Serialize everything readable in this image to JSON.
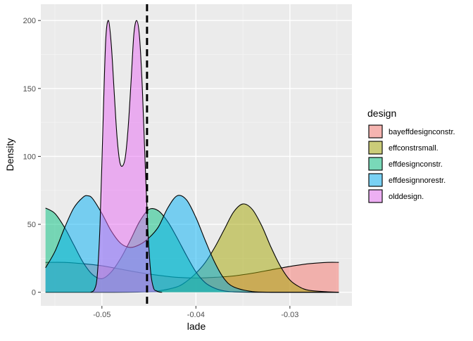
{
  "chart_data": {
    "type": "area",
    "subtype": "density",
    "xlabel": "lade",
    "ylabel": "Density",
    "xlim": [
      -0.0565,
      -0.0234
    ],
    "ylim": [
      -10,
      212
    ],
    "x_ticks": [
      -0.05,
      -0.04,
      -0.03
    ],
    "x_tick_labels": [
      "-0.05",
      "-0.04",
      "-0.03"
    ],
    "y_ticks": [
      0,
      50,
      100,
      150,
      200
    ],
    "y_tick_labels": [
      "0",
      "50",
      "100",
      "150",
      "200"
    ],
    "grid": true,
    "vline": {
      "x": -0.0452,
      "style": "dashed",
      "color": "#000000"
    },
    "legend": {
      "title": "design",
      "position": "right"
    },
    "series": [
      {
        "name": "bayeffdesignconstr.",
        "color": "#F8766D",
        "x": [
          -0.056,
          -0.054,
          -0.052,
          -0.05,
          -0.048,
          -0.046,
          -0.044,
          -0.042,
          -0.04,
          -0.038,
          -0.036,
          -0.034,
          -0.032,
          -0.03,
          -0.028,
          -0.026,
          -0.0248
        ],
        "y": [
          22,
          22,
          21,
          19.5,
          17,
          14.5,
          12.5,
          11,
          10.5,
          11,
          12,
          14,
          16.5,
          19,
          21,
          22,
          22
        ]
      },
      {
        "name": "effconstrsmall.",
        "color": "#A3A500",
        "x": [
          -0.056,
          -0.05,
          -0.046,
          -0.044,
          -0.042,
          -0.041,
          -0.04,
          -0.039,
          -0.038,
          -0.037,
          -0.036,
          -0.035,
          -0.034,
          -0.033,
          -0.032,
          -0.031,
          -0.03,
          -0.029,
          -0.028,
          -0.026,
          -0.0248
        ],
        "y": [
          0,
          0,
          0.2,
          1,
          4,
          8,
          14,
          22,
          33,
          46,
          59,
          65,
          61,
          49,
          33,
          19,
          9,
          4,
          1.5,
          0.3,
          0
        ]
      },
      {
        "name": "effdesignconstr.",
        "color": "#00BF7D",
        "x": [
          -0.056,
          -0.055,
          -0.054,
          -0.053,
          -0.052,
          -0.051,
          -0.05,
          -0.049,
          -0.048,
          -0.047,
          -0.046,
          -0.045,
          -0.044,
          -0.043,
          -0.042,
          -0.041,
          -0.04,
          -0.039,
          -0.038,
          -0.037,
          -0.036,
          -0.034,
          -0.032,
          -0.03,
          -0.028,
          -0.026,
          -0.0248
        ],
        "y": [
          62,
          58,
          48,
          35,
          22,
          13,
          10,
          15,
          25,
          38,
          52,
          61,
          60,
          52,
          40,
          27,
          15,
          7,
          3,
          1,
          0.3,
          0,
          0,
          0,
          0,
          0,
          0
        ]
      },
      {
        "name": "effdesignnorestr.",
        "color": "#00B0F6",
        "x": [
          -0.056,
          -0.055,
          -0.054,
          -0.053,
          -0.052,
          -0.0515,
          -0.051,
          -0.05,
          -0.049,
          -0.048,
          -0.047,
          -0.046,
          -0.045,
          -0.044,
          -0.043,
          -0.042,
          -0.041,
          -0.04,
          -0.039,
          -0.038,
          -0.037,
          -0.036,
          -0.034,
          -0.032,
          -0.03,
          -0.028,
          -0.026,
          -0.0248
        ],
        "y": [
          18,
          30,
          47,
          62,
          70,
          71,
          69,
          58,
          45,
          36,
          33,
          35,
          40,
          48,
          62,
          71,
          68,
          55,
          38,
          22,
          10,
          4,
          0.5,
          0,
          0,
          0,
          0,
          0
        ]
      },
      {
        "name": "olddesign.",
        "color": "#E76BF3",
        "x": [
          -0.0512,
          -0.0508,
          -0.0505,
          -0.0502,
          -0.0499,
          -0.0496,
          -0.0493,
          -0.049,
          -0.0487,
          -0.0484,
          -0.0481,
          -0.0478,
          -0.0475,
          -0.0472,
          -0.0469,
          -0.0466,
          -0.0463,
          -0.046,
          -0.0457,
          -0.0454,
          -0.0451,
          -0.0448,
          -0.0445,
          -0.0442,
          -0.0439,
          -0.0436
        ],
        "y": [
          0,
          2,
          12,
          50,
          120,
          185,
          200,
          182,
          148,
          115,
          96,
          93,
          100,
          122,
          155,
          190,
          200,
          188,
          150,
          95,
          45,
          14,
          3,
          1,
          0.2,
          0
        ]
      }
    ]
  }
}
